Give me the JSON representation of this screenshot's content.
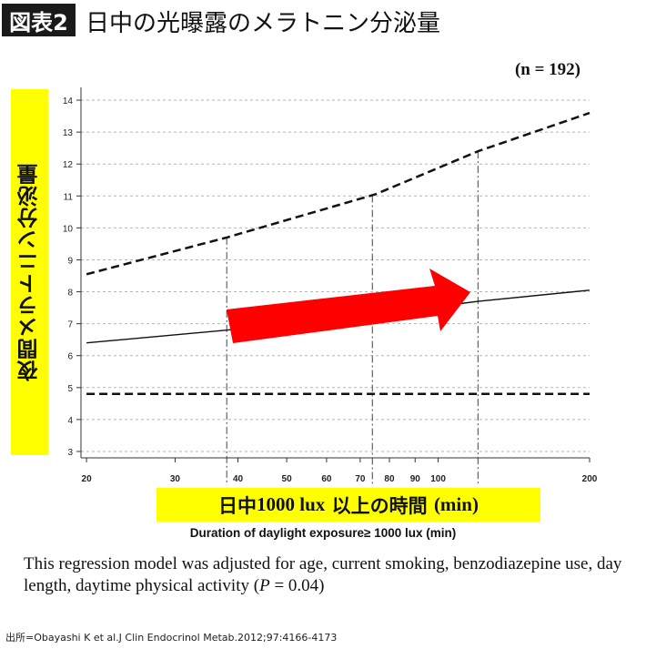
{
  "header": {
    "badge": "図表2",
    "title": "日中の光曝露のメラトニン分泌量"
  },
  "n_label": "(n = 192)",
  "y_axis_label": "夜間メラトニン分泌量",
  "x_axis_label_jp_prefix": "日中",
  "x_axis_label_jp_value": "1000 lux",
  "x_axis_label_jp_suffix": "以上の時間",
  "x_axis_label_jp_unit": "(min)",
  "x_axis_label_en": "Duration of daylight exposure≥ 1000 lux (min)",
  "note_text": "This regression model was adjusted for age, current smoking, benzodiazepine use, day length, daytime physical activity (",
  "note_p": "P",
  "note_value": " = 0.04)",
  "source": "出所=Obayashi K et al.J Clin Endocrinol Metab.2012;97:4166-4173",
  "colors": {
    "highlight": "#ffff00",
    "arrow": "#ff0000",
    "badge": "#1a1a1a"
  },
  "chart_data": {
    "type": "line",
    "x_scale": "log",
    "xlim": [
      19.5,
      200
    ],
    "ylim": [
      2.8,
      14.4
    ],
    "x_ticks": [
      20,
      30,
      40,
      50,
      60,
      70,
      80,
      90,
      100,
      200
    ],
    "y_ticks": [
      3,
      4,
      5,
      6,
      7,
      8,
      9,
      10,
      11,
      12,
      13,
      14
    ],
    "grid": "horizontal dashed",
    "series": [
      {
        "style": "solid",
        "x": [
          20,
          38,
          75,
          120,
          200
        ],
        "y": [
          6.4,
          6.8,
          7.3,
          7.7,
          8.05
        ]
      },
      {
        "style": "dashed",
        "x": [
          20,
          38,
          75,
          120,
          200
        ],
        "y": [
          8.55,
          9.7,
          11.05,
          12.4,
          13.6
        ]
      },
      {
        "style": "dashed",
        "x": [
          20,
          38,
          75,
          120,
          200
        ],
        "y": [
          4.8,
          4.8,
          4.8,
          4.8,
          4.8
        ]
      }
    ],
    "reference_lines_x": [
      38,
      74,
      120
    ],
    "annotation": "red arrow indicating increase"
  }
}
